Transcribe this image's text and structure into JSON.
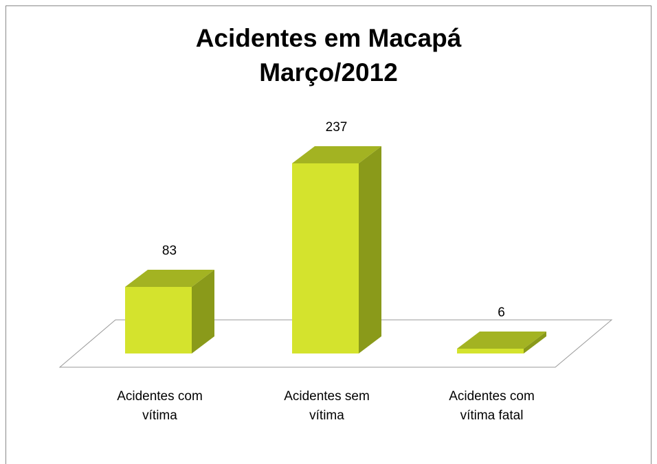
{
  "chart_data": {
    "type": "bar3d",
    "title": "Acidentes em Macapá",
    "subtitle": "Março/2012",
    "categories": [
      "Acidentes com vítima",
      "Acidentes sem vítima",
      "Acidentes com vítima fatal"
    ],
    "values": [
      83,
      237,
      6
    ],
    "color": "#d4e32d"
  }
}
